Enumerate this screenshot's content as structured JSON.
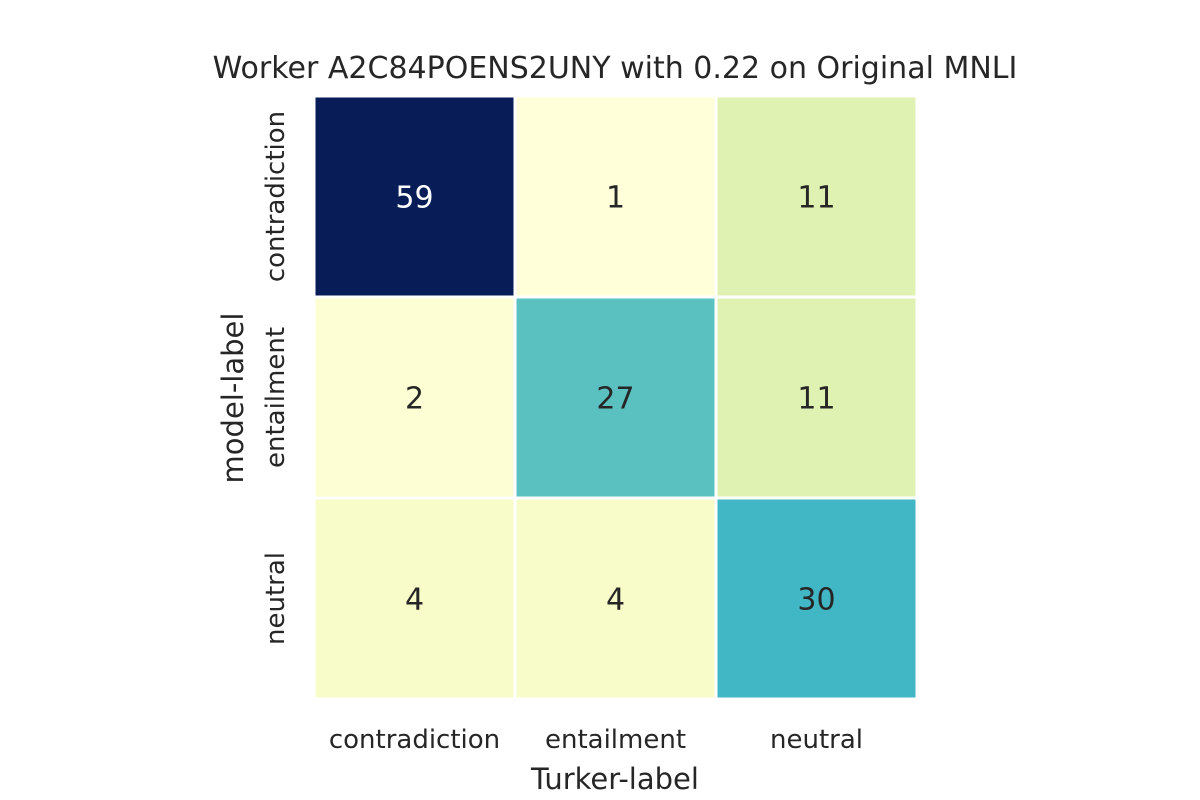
{
  "chart_data": {
    "type": "heatmap",
    "title": "Worker A2C84POENS2UNY with 0.22 on Original MNLI",
    "xlabel": "Turker-label",
    "ylabel": "model-label",
    "x_categories": [
      "contradiction",
      "entailment",
      "neutral"
    ],
    "y_categories": [
      "contradiction",
      "entailment",
      "neutral"
    ],
    "values": [
      [
        59,
        1,
        11
      ],
      [
        2,
        27,
        11
      ],
      [
        4,
        4,
        30
      ]
    ],
    "colormap": "YlGnBu",
    "colorbar": false,
    "annotated": true
  }
}
